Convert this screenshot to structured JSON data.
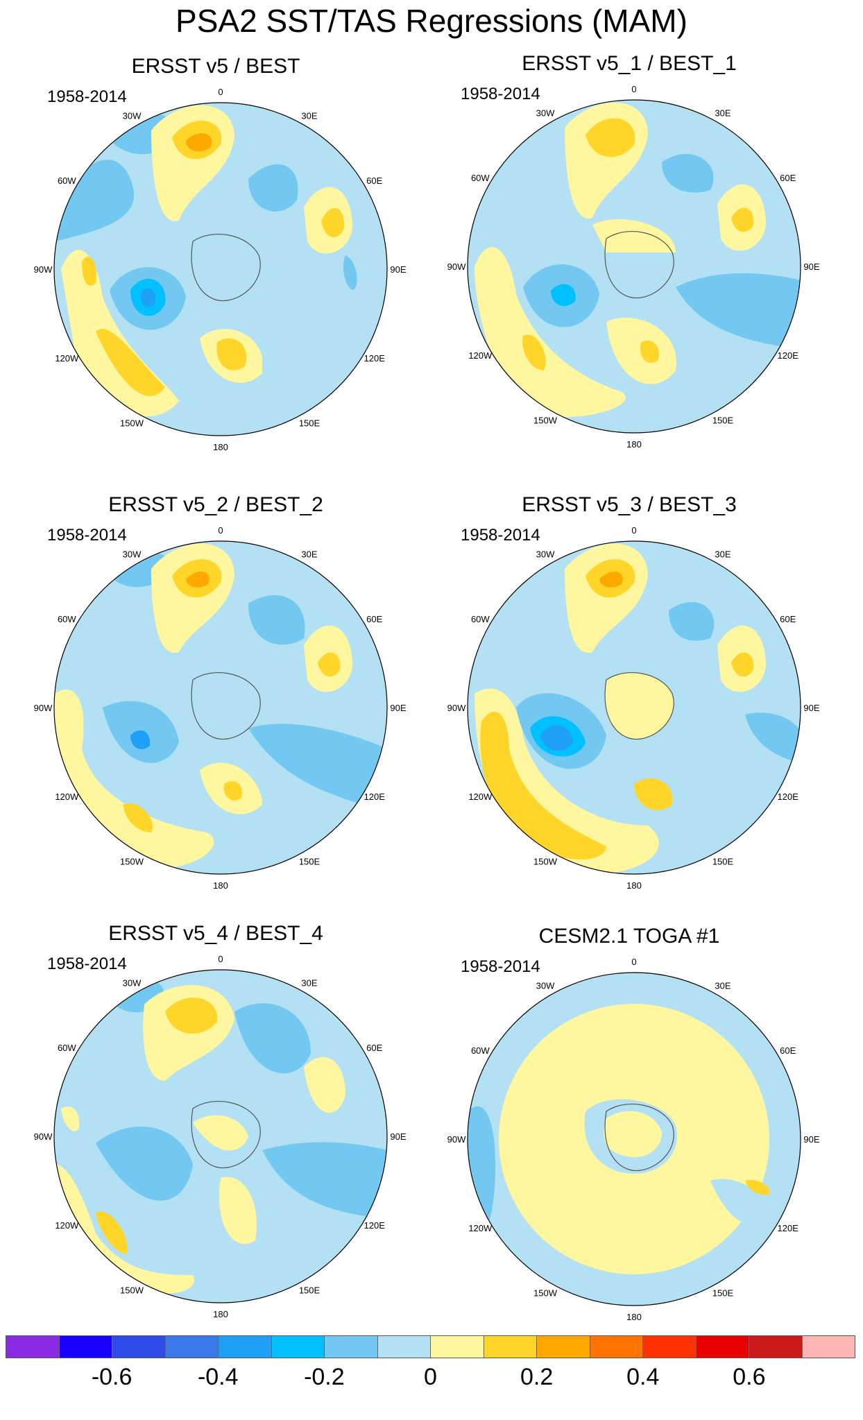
{
  "title": "PSA2 SST/TAS Regressions (MAM)",
  "lon_labels": [
    "0",
    "30E",
    "60E",
    "90E",
    "120E",
    "150E",
    "180",
    "150W",
    "120W",
    "90W",
    "60W",
    "30W"
  ],
  "panels": [
    {
      "title": "ERSST v5 / BEST",
      "years": "1958-2014"
    },
    {
      "title": "ERSST v5_1 / BEST_1",
      "years": "1958-2014"
    },
    {
      "title": "ERSST v5_2 / BEST_2",
      "years": "1958-2014"
    },
    {
      "title": "ERSST v5_3 / BEST_3",
      "years": "1958-2014"
    },
    {
      "title": "ERSST v5_4 / BEST_4",
      "years": "1958-2014"
    },
    {
      "title": "CESM2.1 TOGA #1",
      "years": "1958-2014"
    }
  ],
  "colorbar": {
    "colors": [
      "#8a2be2",
      "#1a00ff",
      "#2e4de8",
      "#3a7ae8",
      "#1f9ff5",
      "#00c0ff",
      "#72c8f0",
      "#b4e0f4",
      "#fff7a0",
      "#ffd529",
      "#ffa800",
      "#ff7300",
      "#ff3300",
      "#e80000",
      "#cc1a1a",
      "#ffb4b4"
    ],
    "labels": [
      "-0.6",
      "-0.4",
      "-0.2",
      "0",
      "0.2",
      "0.4",
      "0.6"
    ],
    "label_values": [
      -0.6,
      -0.4,
      -0.2,
      0,
      0.2,
      0.4,
      0.6
    ],
    "min": -0.8,
    "max": 0.8
  }
}
